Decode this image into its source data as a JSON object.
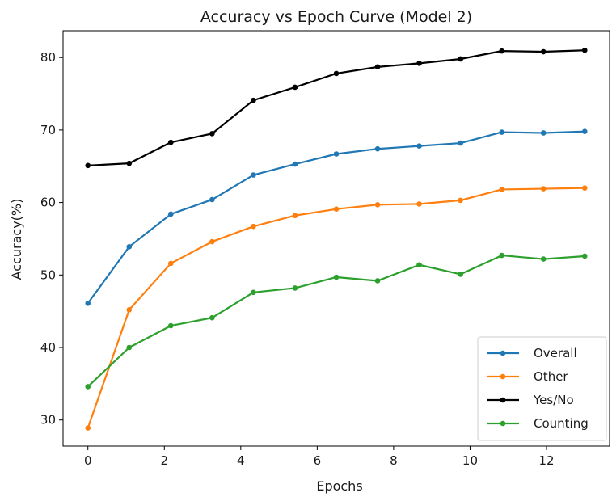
{
  "chart_data": {
    "type": "line",
    "title": "Accuracy vs Epoch Curve (Model 2)",
    "xlabel": "Epochs",
    "ylabel": "Accuracy(%)",
    "xlim": [
      -0.65,
      13.65
    ],
    "ylim": [
      26.4,
      83.7
    ],
    "x_ticks": [
      0,
      2,
      4,
      6,
      8,
      10,
      12
    ],
    "y_ticks": [
      30,
      40,
      50,
      60,
      70,
      80
    ],
    "grid": false,
    "legend_position": "lower-right",
    "x": [
      0,
      1.08,
      2.17,
      3.25,
      4.33,
      5.42,
      6.5,
      7.58,
      8.67,
      9.75,
      10.83,
      11.92,
      13
    ],
    "series": [
      {
        "name": "Overall",
        "color": "#1f77b4",
        "values": [
          46.1,
          53.9,
          58.4,
          60.4,
          63.8,
          65.3,
          66.7,
          67.4,
          67.8,
          68.2,
          69.7,
          69.6,
          69.8
        ]
      },
      {
        "name": "Other",
        "color": "#ff7f0e",
        "values": [
          28.9,
          45.2,
          51.6,
          54.6,
          56.7,
          58.2,
          59.1,
          59.7,
          59.8,
          60.3,
          61.8,
          61.9,
          62.0
        ]
      },
      {
        "name": "Yes/No",
        "color": "#000000",
        "values": [
          65.1,
          65.4,
          68.3,
          69.5,
          74.1,
          75.9,
          77.8,
          78.7,
          79.2,
          79.8,
          80.9,
          80.8,
          81.0
        ]
      },
      {
        "name": "Counting",
        "color": "#2ca02c",
        "values": [
          34.6,
          40.0,
          43.0,
          44.1,
          47.6,
          48.2,
          49.7,
          49.2,
          51.4,
          50.1,
          52.7,
          52.2,
          52.6
        ]
      }
    ]
  }
}
